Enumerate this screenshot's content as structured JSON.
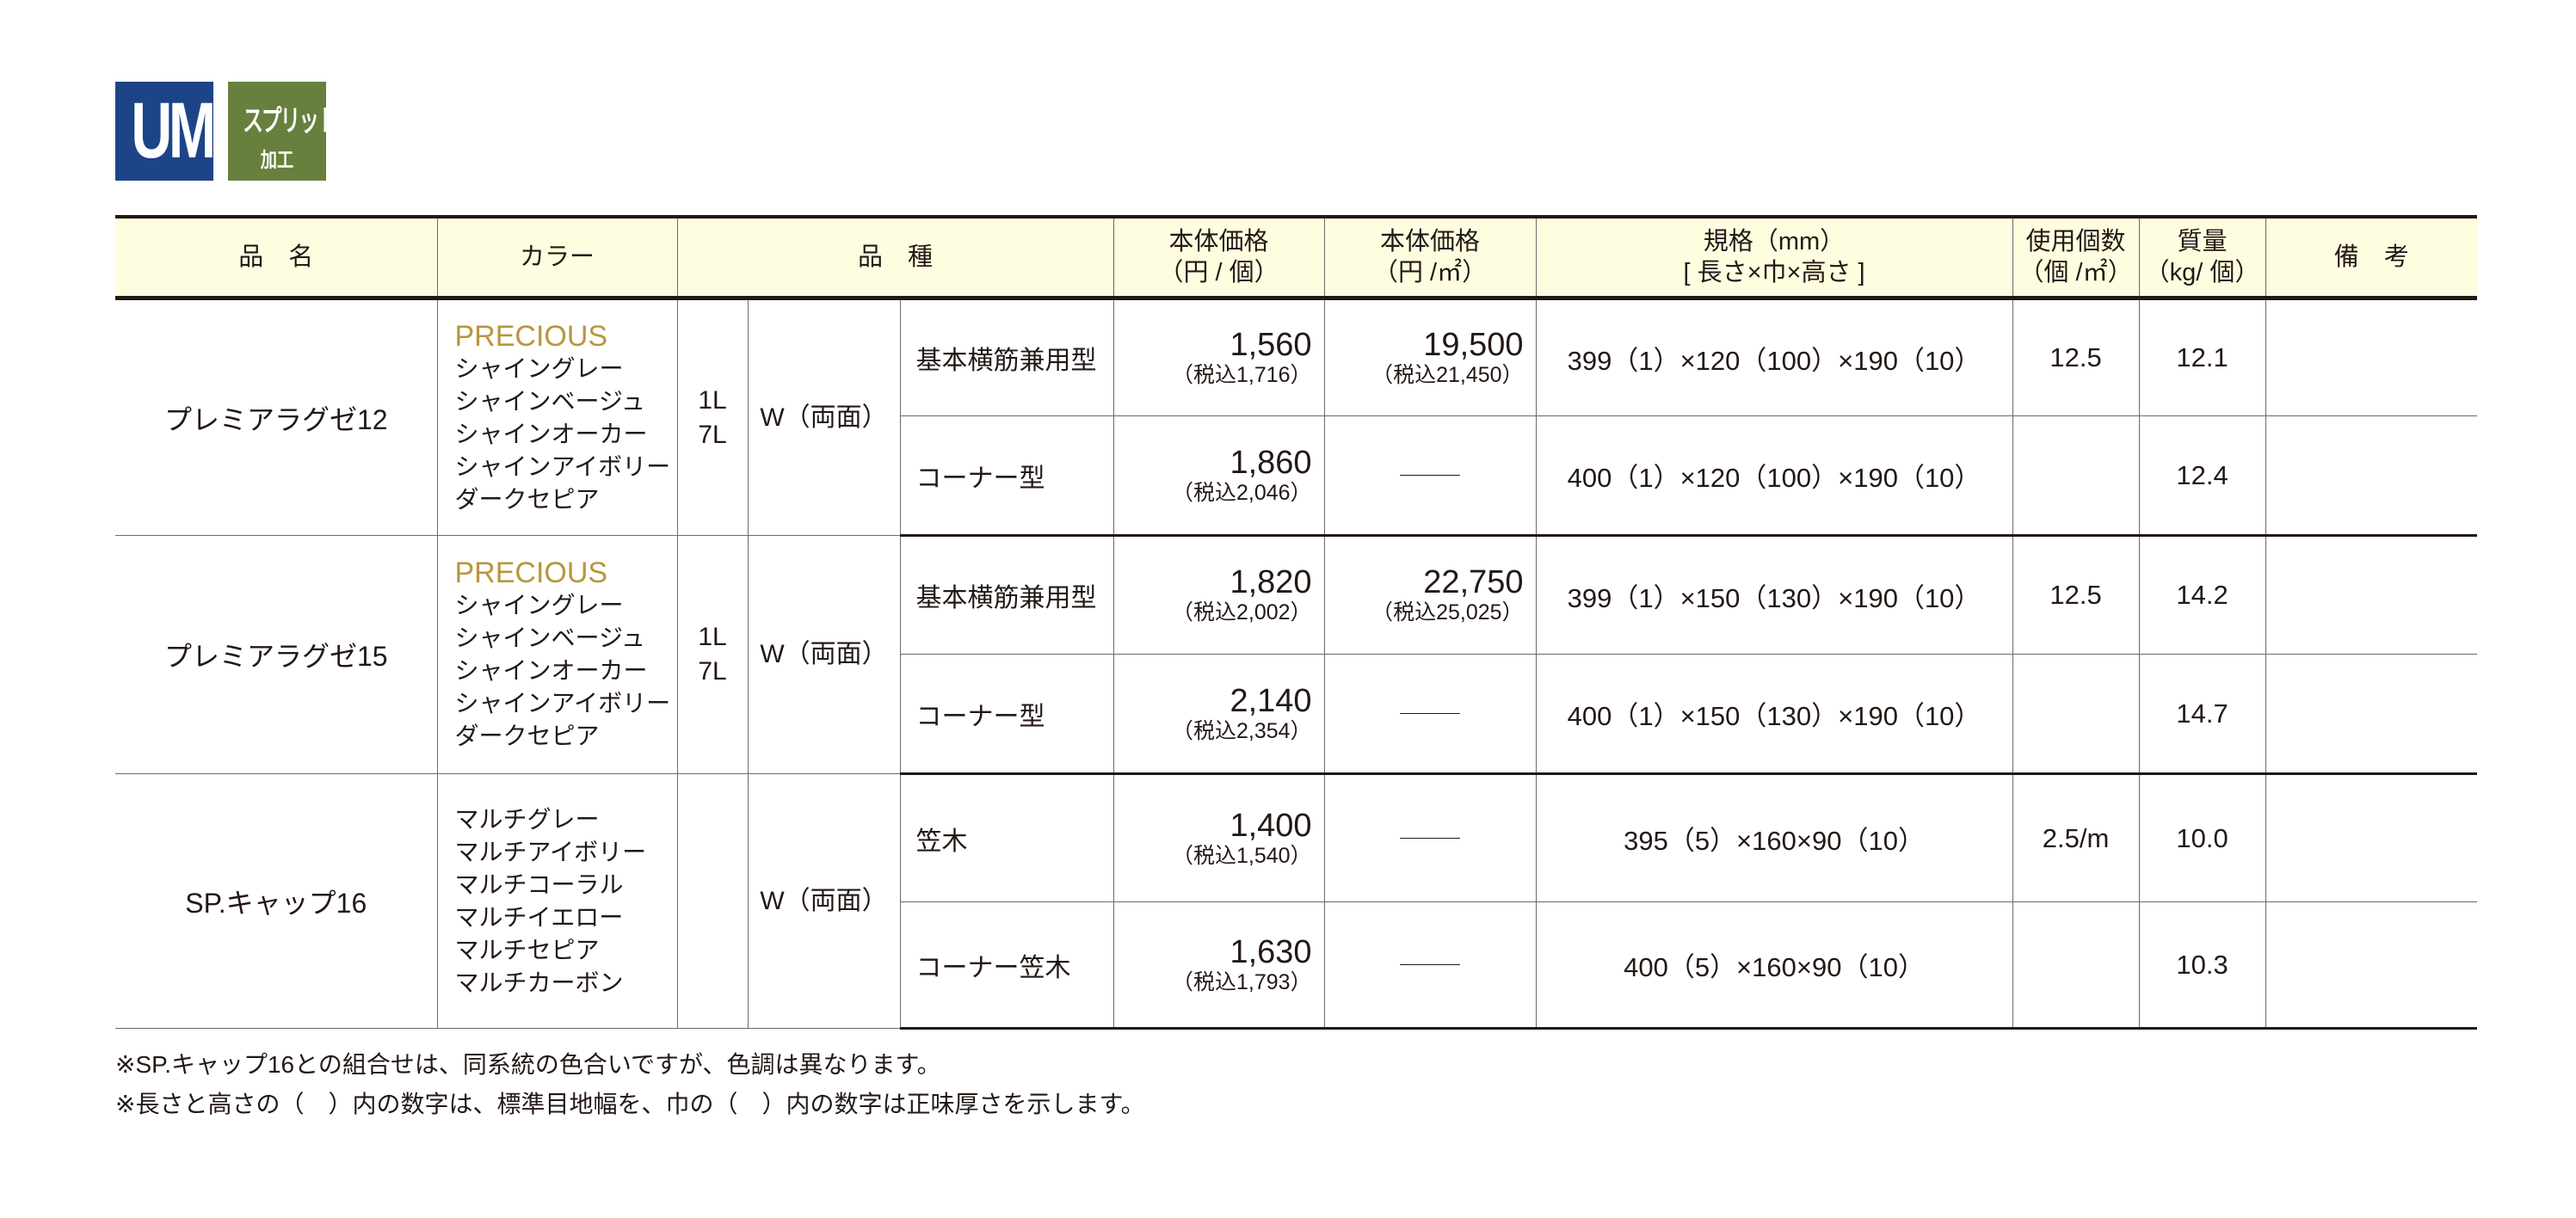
{
  "logo": {
    "um": "UM",
    "badge_line1": "スプリット",
    "badge_line2": "加工",
    "um_color": "#1d4487",
    "badge_color": "#67803d"
  },
  "header": {
    "name": "品　名",
    "color": "カラー",
    "variety": "品　種",
    "price_unit_l1": "本体価格",
    "price_unit_l2": "（円 / 個）",
    "price_area_l1": "本体価格",
    "price_area_l2": "（円 /㎡）",
    "spec_l1": "規格（mm）",
    "spec_l2": "[ 長さ×巾×高さ ]",
    "count_l1": "使用個数",
    "count_l2": "（個 /㎡）",
    "weight_l1": "質量",
    "weight_l2": "（kg/ 個）",
    "remarks": "備　考"
  },
  "accent_color": "#b8963f",
  "header_bg": "#fffde0",
  "groups": [
    {
      "name": "プレミアラグゼ12",
      "precious": "PRECIOUS",
      "colors": [
        "シャイングレー",
        "シャインベージュ",
        "シャインオーカー",
        "シャインアイボリー",
        "ダークセピア"
      ],
      "grades": [
        "1L",
        "7L"
      ],
      "type": "W（両面）",
      "rows": [
        {
          "kind": "基本横筋兼用型",
          "price": "1,560",
          "price_tax": "（税込1,716）",
          "area_price": "19,500",
          "area_price_tax": "（税込21,450）",
          "spec": "399（1）×120（100）×190（10）",
          "count": "12.5",
          "weight": "12.1",
          "remarks": ""
        },
        {
          "kind": "コーナー型",
          "price": "1,860",
          "price_tax": "（税込2,046）",
          "area_price": "",
          "area_price_tax": "",
          "spec": "400（1）×120（100）×190（10）",
          "count": "",
          "weight": "12.4",
          "remarks": ""
        }
      ]
    },
    {
      "name": "プレミアラグゼ15",
      "precious": "PRECIOUS",
      "colors": [
        "シャイングレー",
        "シャインベージュ",
        "シャインオーカー",
        "シャインアイボリー",
        "ダークセピア"
      ],
      "grades": [
        "1L",
        "7L"
      ],
      "type": "W（両面）",
      "rows": [
        {
          "kind": "基本横筋兼用型",
          "price": "1,820",
          "price_tax": "（税込2,002）",
          "area_price": "22,750",
          "area_price_tax": "（税込25,025）",
          "spec": "399（1）×150（130）×190（10）",
          "count": "12.5",
          "weight": "14.2",
          "remarks": ""
        },
        {
          "kind": "コーナー型",
          "price": "2,140",
          "price_tax": "（税込2,354）",
          "area_price": "",
          "area_price_tax": "",
          "spec": "400（1）×150（130）×190（10）",
          "count": "",
          "weight": "14.7",
          "remarks": ""
        }
      ]
    },
    {
      "name": "SP.キャップ16",
      "precious": "",
      "colors": [
        "マルチグレー",
        "マルチアイボリー",
        "マルチコーラル",
        "マルチイエロー",
        "マルチセピア",
        "マルチカーボン"
      ],
      "grades": [],
      "type": "W（両面）",
      "rows": [
        {
          "kind": "笠木",
          "price": "1,400",
          "price_tax": "（税込1,540）",
          "area_price": "",
          "area_price_tax": "",
          "spec": "395（5）×160×90（10）",
          "count": "2.5/m",
          "weight": "10.0",
          "remarks": ""
        },
        {
          "kind": "コーナー笠木",
          "price": "1,630",
          "price_tax": "（税込1,793）",
          "area_price": "",
          "area_price_tax": "",
          "spec": "400（5）×160×90（10）",
          "count": "",
          "weight": "10.3",
          "remarks": ""
        }
      ]
    }
  ],
  "notes": [
    "※SP.キャップ16との組合せは、同系統の色合いですが、色調は異なります。",
    "※長さと高さの（　）内の数字は、標準目地幅を、巾の（　）内の数字は正味厚さを示します。"
  ]
}
